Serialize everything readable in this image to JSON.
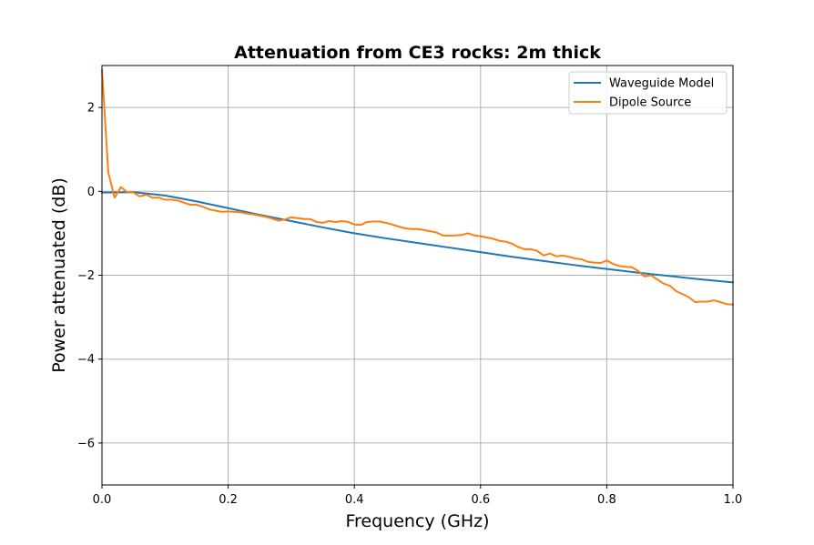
{
  "chart_data": {
    "type": "line",
    "title": "Attenuation from CE3 rocks: 2m thick",
    "xlabel": "Frequency (GHz)",
    "ylabel": "Power attenuated (dB)",
    "xlim": [
      0.0,
      1.0
    ],
    "ylim": [
      -7,
      3
    ],
    "xticks": [
      0.0,
      0.2,
      0.4,
      0.6,
      0.8,
      1.0
    ],
    "xtick_labels": [
      "0.0",
      "0.2",
      "0.4",
      "0.6",
      "0.8",
      "1.0"
    ],
    "yticks": [
      -6,
      -4,
      -2,
      0,
      2
    ],
    "ytick_labels": [
      "−6",
      "−4",
      "−2",
      "0",
      "2"
    ],
    "grid": true,
    "legend_position": "top-right",
    "series": [
      {
        "name": "Waveguide Model",
        "color": "#1f77b4",
        "x": [
          0.0,
          0.05,
          0.1,
          0.15,
          0.2,
          0.25,
          0.3,
          0.35,
          0.4,
          0.45,
          0.5,
          0.55,
          0.6,
          0.65,
          0.7,
          0.75,
          0.8,
          0.85,
          0.9,
          0.95,
          1.0
        ],
        "y": [
          -0.03,
          -0.02,
          -0.1,
          -0.24,
          -0.4,
          -0.56,
          -0.71,
          -0.86,
          -1.0,
          -1.12,
          -1.23,
          -1.34,
          -1.45,
          -1.56,
          -1.66,
          -1.76,
          -1.85,
          -1.94,
          -2.02,
          -2.1,
          -2.17
        ]
      },
      {
        "name": "Dipole Source",
        "color": "#ff7f0e",
        "x": [
          0.0,
          0.01,
          0.02,
          0.03,
          0.04,
          0.05,
          0.06,
          0.07,
          0.08,
          0.09,
          0.1,
          0.11,
          0.12,
          0.13,
          0.14,
          0.15,
          0.16,
          0.17,
          0.18,
          0.19,
          0.2,
          0.21,
          0.22,
          0.23,
          0.24,
          0.25,
          0.26,
          0.27,
          0.28,
          0.29,
          0.3,
          0.31,
          0.32,
          0.33,
          0.34,
          0.35,
          0.36,
          0.37,
          0.38,
          0.39,
          0.4,
          0.41,
          0.42,
          0.43,
          0.44,
          0.45,
          0.46,
          0.47,
          0.48,
          0.49,
          0.5,
          0.51,
          0.52,
          0.53,
          0.54,
          0.55,
          0.56,
          0.57,
          0.58,
          0.59,
          0.6,
          0.61,
          0.62,
          0.63,
          0.64,
          0.65,
          0.66,
          0.67,
          0.68,
          0.69,
          0.7,
          0.71,
          0.72,
          0.73,
          0.74,
          0.75,
          0.76,
          0.77,
          0.78,
          0.79,
          0.8,
          0.81,
          0.82,
          0.83,
          0.84,
          0.85,
          0.86,
          0.87,
          0.88,
          0.89,
          0.9,
          0.91,
          0.92,
          0.93,
          0.94,
          0.95,
          0.96,
          0.97,
          0.98,
          0.99,
          1.0
        ],
        "y": [
          2.9,
          0.45,
          -0.15,
          0.1,
          -0.02,
          -0.03,
          -0.12,
          -0.08,
          -0.15,
          -0.15,
          -0.2,
          -0.2,
          -0.22,
          -0.27,
          -0.32,
          -0.32,
          -0.37,
          -0.43,
          -0.46,
          -0.49,
          -0.48,
          -0.49,
          -0.5,
          -0.53,
          -0.55,
          -0.58,
          -0.61,
          -0.65,
          -0.7,
          -0.67,
          -0.62,
          -0.64,
          -0.66,
          -0.66,
          -0.73,
          -0.75,
          -0.71,
          -0.73,
          -0.71,
          -0.73,
          -0.79,
          -0.8,
          -0.73,
          -0.72,
          -0.72,
          -0.75,
          -0.79,
          -0.84,
          -0.88,
          -0.9,
          -0.9,
          -0.92,
          -0.95,
          -0.98,
          -1.05,
          -1.06,
          -1.05,
          -1.04,
          -1.0,
          -1.05,
          -1.07,
          -1.1,
          -1.13,
          -1.18,
          -1.2,
          -1.25,
          -1.33,
          -1.38,
          -1.38,
          -1.42,
          -1.53,
          -1.48,
          -1.55,
          -1.53,
          -1.56,
          -1.6,
          -1.62,
          -1.68,
          -1.7,
          -1.71,
          -1.65,
          -1.73,
          -1.78,
          -1.8,
          -1.81,
          -1.9,
          -2.03,
          -2.0,
          -2.1,
          -2.2,
          -2.25,
          -2.38,
          -2.45,
          -2.52,
          -2.64,
          -2.63,
          -2.63,
          -2.6,
          -2.64,
          -2.69,
          -2.7
        ]
      }
    ]
  }
}
